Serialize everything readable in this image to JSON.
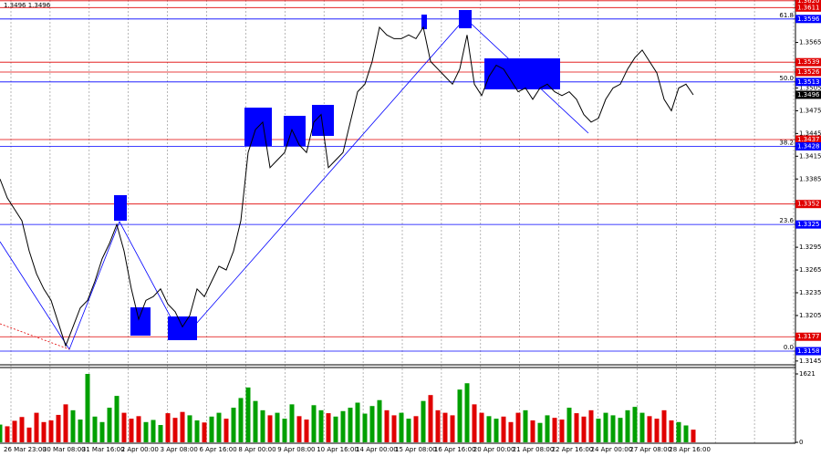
{
  "chart_data": [
    {
      "type": "line",
      "title": "1.3496 1.3496",
      "color": "#000000",
      "grid": true,
      "ylim": [
        1.314,
        1.3621
      ],
      "yticks": [
        1.3145,
        1.3205,
        1.3235,
        1.3265,
        1.3295,
        1.3385,
        1.3415,
        1.3445,
        1.3475,
        1.3505,
        1.3565
      ],
      "xtick_labels": [
        "26 Mar 23:00",
        "30 Mar 08:00",
        "31 Mar 16:00",
        "2 Apr 00:00",
        "3 Apr 08:00",
        "6 Apr 16:00",
        "8 Apr 00:00",
        "9 Apr 08:00",
        "10 Apr 16:00",
        "14 Apr 00:00",
        "15 Apr 08:00",
        "16 Apr 16:00",
        "20 Apr 00:00",
        "21 Apr 08:00",
        "22 Apr 16:00",
        "24 Apr 00:00",
        "27 Apr 08:00",
        "28 Apr 16:00"
      ],
      "values": [
        1.3385,
        1.336,
        1.3345,
        1.333,
        1.329,
        1.326,
        1.324,
        1.3225,
        1.3195,
        1.3165,
        1.319,
        1.3215,
        1.3225,
        1.325,
        1.328,
        1.33,
        1.3325,
        1.329,
        1.324,
        1.32,
        1.3225,
        1.323,
        1.324,
        1.322,
        1.321,
        1.319,
        1.3205,
        1.324,
        1.323,
        1.325,
        1.327,
        1.3265,
        1.329,
        1.333,
        1.342,
        1.345,
        1.346,
        1.34,
        1.341,
        1.342,
        1.345,
        1.343,
        1.342,
        1.346,
        1.347,
        1.34,
        1.341,
        1.342,
        1.346,
        1.35,
        1.351,
        1.354,
        1.3585,
        1.3575,
        1.357,
        1.357,
        1.3575,
        1.357,
        1.3585,
        1.354,
        1.353,
        1.352,
        1.351,
        1.353,
        1.3575,
        1.351,
        1.3495,
        1.352,
        1.3535,
        1.353,
        1.3515,
        1.35,
        1.3505,
        1.349,
        1.3505,
        1.351,
        1.35,
        1.3495,
        1.35,
        1.349,
        1.347,
        1.346,
        1.3465,
        1.349,
        1.3505,
        1.351,
        1.353,
        1.3545,
        1.3555,
        1.354,
        1.3525,
        1.349,
        1.3475,
        1.3505,
        1.351,
        1.3496
      ],
      "levels_color": "#e00000",
      "levels": [
        {
          "value": 1.362,
          "label": "1.3620"
        },
        1.3611,
        1.3539,
        1.3526,
        1.3437,
        1.3352,
        1.3177
      ],
      "fib_color": "#0000ff",
      "fib_levels": [
        {
          "price": 1.3596,
          "ratio": "61.8"
        },
        {
          "price": 1.3513,
          "ratio": "50.0"
        },
        {
          "price": 1.3428,
          "ratio": "38.2"
        },
        {
          "price": 1.3325,
          "ratio": "23.6"
        },
        {
          "price": 1.3158,
          "ratio": "0.0"
        }
      ],
      "last_price": 1.3496
    },
    {
      "type": "bar",
      "up_color": "#00a000",
      "down_color": "#e00000",
      "ylim": [
        0,
        1621
      ],
      "yticks": [
        0,
        1621
      ],
      "values": [
        420,
        380,
        510,
        600,
        350,
        700,
        480,
        520,
        650,
        900,
        760,
        540,
        1621,
        610,
        480,
        820,
        1100,
        700,
        560,
        620,
        480,
        530,
        410,
        690,
        580,
        720,
        640,
        520,
        470,
        610,
        700,
        560,
        820,
        1050,
        1300,
        980,
        760,
        640,
        700,
        560,
        900,
        620,
        540,
        880,
        760,
        690,
        610,
        740,
        820,
        940,
        680,
        860,
        1000,
        760,
        640,
        700,
        560,
        620,
        980,
        1120,
        760,
        700,
        640,
        1250,
        1400,
        900,
        700,
        620,
        560,
        610,
        480,
        700,
        760,
        520,
        460,
        640,
        580,
        540,
        820,
        690,
        610,
        760,
        560,
        700,
        640,
        580,
        760,
        840,
        700,
        620,
        560,
        760,
        520,
        480,
        400,
        300
      ]
    }
  ]
}
